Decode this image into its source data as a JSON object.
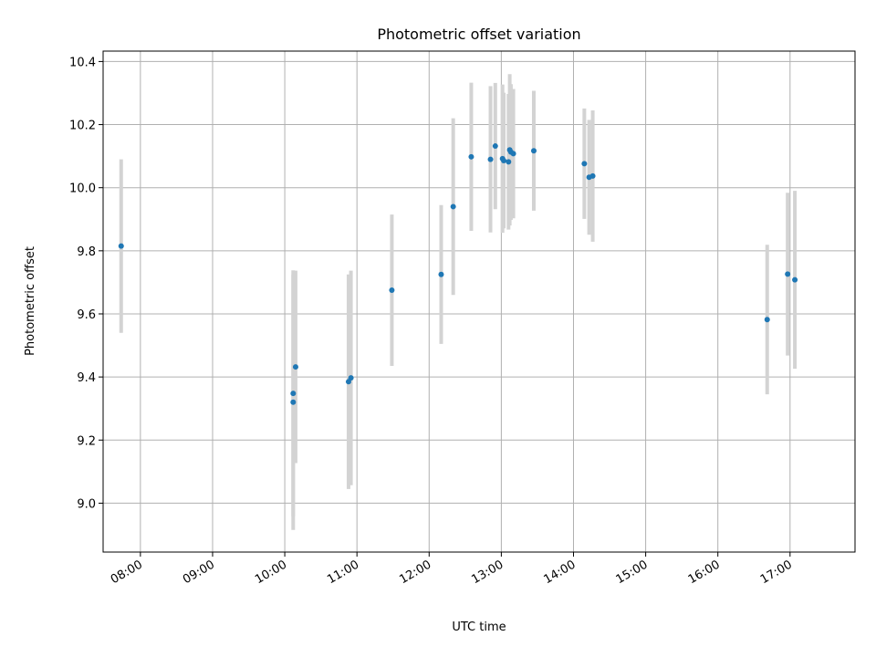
{
  "chart_data": {
    "type": "scatter",
    "title": "Photometric offset variation",
    "xlabel": "UTC time",
    "ylabel": "Photometric offset",
    "x_ticks": [
      "08:00",
      "09:00",
      "10:00",
      "11:00",
      "12:00",
      "13:00",
      "14:00",
      "15:00",
      "16:00",
      "17:00"
    ],
    "y_ticks": [
      "9.0",
      "9.2",
      "9.4",
      "9.6",
      "9.8",
      "10.0",
      "10.2",
      "10.4"
    ],
    "xlim": [
      "07:29",
      "17:54"
    ],
    "ylim": [
      8.845,
      10.433
    ],
    "grid": true,
    "marker_color": "#1f77b4",
    "errorbar_color": "#d3d3d3",
    "points": [
      {
        "time": "07:44",
        "y": 9.815,
        "err": 0.275
      },
      {
        "time": "10:07",
        "y": 9.32,
        "err": 0.405
      },
      {
        "time": "10:07",
        "y": 9.348,
        "err": 0.39
      },
      {
        "time": "10:09",
        "y": 9.432,
        "err": 0.305
      },
      {
        "time": "10:53",
        "y": 9.385,
        "err": 0.34
      },
      {
        "time": "10:55",
        "y": 9.397,
        "err": 0.34
      },
      {
        "time": "11:29",
        "y": 9.675,
        "err": 0.24
      },
      {
        "time": "12:10",
        "y": 9.725,
        "err": 0.22
      },
      {
        "time": "12:20",
        "y": 9.94,
        "err": 0.28
      },
      {
        "time": "12:35",
        "y": 10.098,
        "err": 0.235
      },
      {
        "time": "12:51",
        "y": 10.09,
        "err": 0.232
      },
      {
        "time": "12:55",
        "y": 10.132,
        "err": 0.2
      },
      {
        "time": "13:01",
        "y": 10.092,
        "err": 0.235
      },
      {
        "time": "13:02",
        "y": 10.086,
        "err": 0.215
      },
      {
        "time": "13:06",
        "y": 10.082,
        "err": 0.215
      },
      {
        "time": "13:07",
        "y": 10.12,
        "err": 0.24
      },
      {
        "time": "13:08",
        "y": 10.113,
        "err": 0.215
      },
      {
        "time": "13:10",
        "y": 10.108,
        "err": 0.205
      },
      {
        "time": "13:27",
        "y": 10.117,
        "err": 0.19
      },
      {
        "time": "14:09",
        "y": 10.076,
        "err": 0.175
      },
      {
        "time": "14:13",
        "y": 10.033,
        "err": 0.182
      },
      {
        "time": "14:16",
        "y": 10.037,
        "err": 0.208
      },
      {
        "time": "16:41",
        "y": 9.582,
        "err": 0.237
      },
      {
        "time": "16:58",
        "y": 9.726,
        "err": 0.258
      },
      {
        "time": "17:04",
        "y": 9.708,
        "err": 0.282
      }
    ]
  }
}
